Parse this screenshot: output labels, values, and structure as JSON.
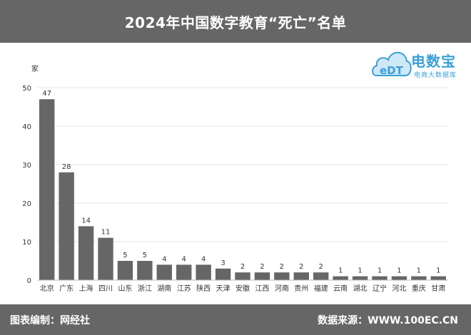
{
  "header": {
    "title": "2024年中国数字教育“死亡”名单"
  },
  "logo": {
    "mark": "eDT",
    "name": "电数宝",
    "sub": "电商大数据库"
  },
  "footer": {
    "left": "图表编制：网经社",
    "right": "数据来源：WWW.100EC.CN"
  },
  "colors": {
    "bar": "#666666",
    "band": "#666666",
    "logo": "#3aa0d6"
  },
  "chart_data": {
    "type": "bar",
    "title": "2024年中国数字教育“死亡”名单",
    "ylabel": "家",
    "xlabel": "",
    "ylim": [
      0,
      50
    ],
    "yticks": [
      0,
      10,
      20,
      30,
      40,
      50
    ],
    "grid": true,
    "categories": [
      "北京",
      "广东",
      "上海",
      "四川",
      "山东",
      "浙江",
      "湖南",
      "江苏",
      "陕西",
      "天津",
      "安徽",
      "江西",
      "河南",
      "贵州",
      "福建",
      "云南",
      "湖北",
      "辽宁",
      "河北",
      "重庆",
      "甘肃"
    ],
    "values": [
      47,
      28,
      14,
      11,
      5,
      5,
      4,
      4,
      4,
      3,
      2,
      2,
      2,
      2,
      2,
      1,
      1,
      1,
      1,
      1,
      1
    ]
  }
}
